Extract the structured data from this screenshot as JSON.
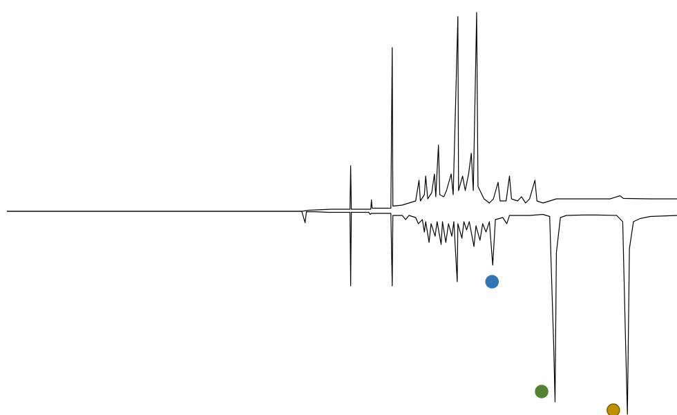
{
  "chart_data": {
    "type": "line",
    "title": "",
    "xlabel": "",
    "ylabel": "",
    "grid": false,
    "legend": "none",
    "axes_visible": false,
    "xlim": [
      0,
      100
    ],
    "ylim": [
      -100,
      100
    ],
    "series": [
      {
        "points": [
          [
            0.0,
            0.0
          ],
          [
            30.0,
            0.0
          ],
          [
            44.0,
            0.0
          ],
          [
            45.0,
            0.5
          ],
          [
            47.0,
            0.8
          ],
          [
            48.5,
            1.0
          ],
          [
            51.2,
            1.0
          ],
          [
            51.3,
            22.0
          ],
          [
            51.4,
            1.0
          ],
          [
            54.3,
            1.0
          ],
          [
            54.4,
            5.5
          ],
          [
            54.5,
            1.5
          ],
          [
            57.3,
            1.5
          ],
          [
            57.5,
            79.0
          ],
          [
            57.6,
            2.5
          ],
          [
            59.0,
            3.0
          ],
          [
            60.0,
            4.0
          ],
          [
            61.0,
            5.0
          ],
          [
            61.5,
            15.0
          ],
          [
            61.7,
            5.0
          ],
          [
            62.3,
            8.0
          ],
          [
            62.5,
            17.0
          ],
          [
            62.8,
            6.0
          ],
          [
            63.4,
            9.0
          ],
          [
            63.8,
            18.0
          ],
          [
            64.0,
            7.0
          ],
          [
            64.4,
            32.0
          ],
          [
            64.6,
            8.0
          ],
          [
            65.2,
            7.0
          ],
          [
            65.6,
            10.0
          ],
          [
            66.3,
            18.0
          ],
          [
            66.6,
            8.0
          ],
          [
            67.3,
            94.0
          ],
          [
            67.4,
            10.0
          ],
          [
            68.0,
            17.0
          ],
          [
            68.4,
            10.0
          ],
          [
            68.9,
            18.0
          ],
          [
            69.3,
            28.0
          ],
          [
            69.6,
            10.0
          ],
          [
            70.1,
            96.0
          ],
          [
            70.3,
            12.0
          ],
          [
            70.6,
            10.0
          ],
          [
            71.2,
            6.0
          ],
          [
            72.0,
            4.0
          ],
          [
            72.6,
            6.0
          ],
          [
            73.3,
            14.0
          ],
          [
            73.6,
            5.0
          ],
          [
            74.5,
            5.0
          ],
          [
            75.0,
            17.0
          ],
          [
            75.3,
            6.0
          ],
          [
            76.2,
            5.0
          ],
          [
            76.8,
            7.0
          ],
          [
            77.4,
            4.0
          ],
          [
            78.0,
            6.0
          ],
          [
            78.8,
            15.0
          ],
          [
            79.1,
            5.0
          ],
          [
            80.0,
            4.0
          ],
          [
            82.0,
            6.0
          ],
          [
            86.0,
            6.0
          ],
          [
            90.0,
            6.0
          ],
          [
            91.5,
            7.5
          ],
          [
            92.0,
            6.2
          ],
          [
            96.0,
            6.0
          ],
          [
            100.0,
            6.0
          ]
        ]
      },
      {
        "points": [
          [
            0.0,
            0.0
          ],
          [
            30.0,
            0.0
          ],
          [
            44.0,
            0.0
          ],
          [
            44.5,
            -5.5
          ],
          [
            44.7,
            -0.2
          ],
          [
            46.0,
            -0.2
          ],
          [
            48.0,
            -0.5
          ],
          [
            51.2,
            -0.5
          ],
          [
            51.3,
            -36.0
          ],
          [
            51.4,
            -0.5
          ],
          [
            54.0,
            -0.5
          ],
          [
            54.2,
            -1.5
          ],
          [
            54.4,
            -1.0
          ],
          [
            57.3,
            -1.0
          ],
          [
            57.5,
            -36.0
          ],
          [
            57.6,
            -2.0
          ],
          [
            59.0,
            -2.0
          ],
          [
            59.5,
            -4.0
          ],
          [
            60.0,
            -2.0
          ],
          [
            61.0,
            -3.0
          ],
          [
            61.4,
            -6.0
          ],
          [
            62.0,
            -4.0
          ],
          [
            62.3,
            -10.0
          ],
          [
            62.5,
            -5.0
          ],
          [
            63.0,
            -15.0
          ],
          [
            63.3,
            -6.0
          ],
          [
            63.9,
            -12.0
          ],
          [
            64.2,
            -5.0
          ],
          [
            64.8,
            -16.0
          ],
          [
            65.0,
            -5.0
          ],
          [
            65.5,
            -15.0
          ],
          [
            65.9,
            -6.0
          ],
          [
            66.4,
            -12.0
          ],
          [
            66.7,
            -5.0
          ],
          [
            67.2,
            -34.0
          ],
          [
            67.3,
            -6.0
          ],
          [
            67.9,
            -13.0
          ],
          [
            68.2,
            -5.0
          ],
          [
            68.6,
            -9.0
          ],
          [
            69.0,
            -5.0
          ],
          [
            69.7,
            -17.0
          ],
          [
            70.0,
            -7.0
          ],
          [
            70.6,
            -14.0
          ],
          [
            71.0,
            -6.0
          ],
          [
            71.5,
            -10.0
          ],
          [
            72.0,
            -5.0
          ],
          [
            72.5,
            -26.0
          ],
          [
            72.9,
            -4.0
          ],
          [
            74.0,
            -3.0
          ],
          [
            74.6,
            -6.0
          ],
          [
            75.0,
            -2.0
          ],
          [
            78.0,
            -2.0
          ],
          [
            80.0,
            -1.5
          ],
          [
            81.0,
            -2.5
          ],
          [
            81.6,
            -65.0
          ],
          [
            81.8,
            -92.0
          ],
          [
            82.0,
            -20.0
          ],
          [
            82.6,
            -3.0
          ],
          [
            83.5,
            -2.0
          ],
          [
            86.0,
            -1.8
          ],
          [
            88.0,
            -1.8
          ],
          [
            91.0,
            -2.0
          ],
          [
            91.9,
            -5.0
          ],
          [
            92.3,
            -60.0
          ],
          [
            92.6,
            -98.0
          ],
          [
            92.9,
            -18.0
          ],
          [
            93.5,
            -5.0
          ],
          [
            94.5,
            -3.5
          ],
          [
            96.0,
            -2.5
          ],
          [
            100.0,
            -2.0
          ]
        ]
      }
    ],
    "markers": [
      {
        "x": 72.4,
        "y": -34.0,
        "color": "#2e75b6",
        "edge": "#2e75b6"
      },
      {
        "x": 79.8,
        "y": -87.0,
        "color": "#548235",
        "edge": "#548235"
      },
      {
        "x": 90.5,
        "y": -96.0,
        "color": "#bf9000",
        "edge": "#7f6000"
      }
    ]
  }
}
